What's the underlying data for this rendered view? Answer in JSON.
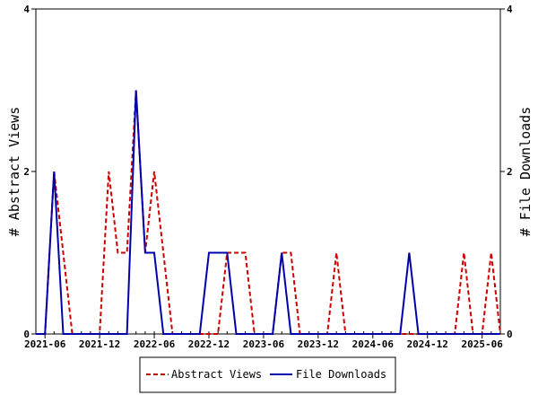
{
  "chart_data": {
    "type": "line",
    "ylabel_left": "# Abstract Views",
    "ylabel_right": "# File Downloads",
    "x_start": "2021-05",
    "x_end": "2025-08",
    "xtick_labels": [
      "2021-06",
      "2021-12",
      "2022-06",
      "2022-12",
      "2023-06",
      "2023-12",
      "2024-06",
      "2024-12",
      "2025-06"
    ],
    "ylim": [
      0,
      4
    ],
    "yticks": [
      "0",
      "2",
      "4"
    ],
    "legend_position": "bottom-center",
    "series": [
      {
        "name": "Abstract Views",
        "color": "#cc0000",
        "style": "dashed",
        "x": [
          "2021-05",
          "2021-06",
          "2021-07",
          "2021-08",
          "2021-09",
          "2021-10",
          "2021-11",
          "2021-12",
          "2022-01",
          "2022-02",
          "2022-03",
          "2022-04",
          "2022-05",
          "2022-06",
          "2022-07",
          "2022-08",
          "2022-09",
          "2022-10",
          "2022-11",
          "2022-12",
          "2023-01",
          "2023-02",
          "2023-03",
          "2023-04",
          "2023-05",
          "2023-06",
          "2023-07",
          "2023-08",
          "2023-09",
          "2023-10",
          "2023-11",
          "2023-12",
          "2024-01",
          "2024-02",
          "2024-03",
          "2024-04",
          "2024-05",
          "2024-06",
          "2024-07",
          "2024-08",
          "2024-09",
          "2024-10",
          "2024-11",
          "2024-12",
          "2025-01",
          "2025-02",
          "2025-03",
          "2025-04",
          "2025-05",
          "2025-06",
          "2025-07",
          "2025-08"
        ],
        "values": [
          0,
          0,
          2,
          1,
          0,
          0,
          0,
          0,
          2,
          1,
          1,
          3,
          1,
          2,
          1,
          0,
          0,
          0,
          0,
          0,
          0,
          1,
          1,
          1,
          0,
          0,
          0,
          1,
          1,
          0,
          0,
          0,
          0,
          1,
          0,
          0,
          0,
          0,
          0,
          0,
          0,
          0,
          0,
          0,
          0,
          0,
          0,
          1,
          0,
          0,
          1,
          0
        ]
      },
      {
        "name": "File Downloads",
        "color": "#0000aa",
        "style": "solid",
        "x": [
          "2021-05",
          "2021-06",
          "2021-07",
          "2021-08",
          "2021-09",
          "2021-10",
          "2021-11",
          "2021-12",
          "2022-01",
          "2022-02",
          "2022-03",
          "2022-04",
          "2022-05",
          "2022-06",
          "2022-07",
          "2022-08",
          "2022-09",
          "2022-10",
          "2022-11",
          "2022-12",
          "2023-01",
          "2023-02",
          "2023-03",
          "2023-04",
          "2023-05",
          "2023-06",
          "2023-07",
          "2023-08",
          "2023-09",
          "2023-10",
          "2023-11",
          "2023-12",
          "2024-01",
          "2024-02",
          "2024-03",
          "2024-04",
          "2024-05",
          "2024-06",
          "2024-07",
          "2024-08",
          "2024-09",
          "2024-10",
          "2024-11",
          "2024-12",
          "2025-01",
          "2025-02",
          "2025-03",
          "2025-04",
          "2025-05",
          "2025-06",
          "2025-07",
          "2025-08"
        ],
        "values": [
          0,
          0,
          2,
          0,
          0,
          0,
          0,
          0,
          0,
          0,
          0,
          3,
          1,
          1,
          0,
          0,
          0,
          0,
          0,
          1,
          1,
          1,
          0,
          0,
          0,
          0,
          0,
          1,
          0,
          0,
          0,
          0,
          0,
          0,
          0,
          0,
          0,
          0,
          0,
          0,
          0,
          1,
          0,
          0,
          0,
          0,
          0,
          0,
          0,
          0,
          0,
          0
        ]
      }
    ]
  }
}
